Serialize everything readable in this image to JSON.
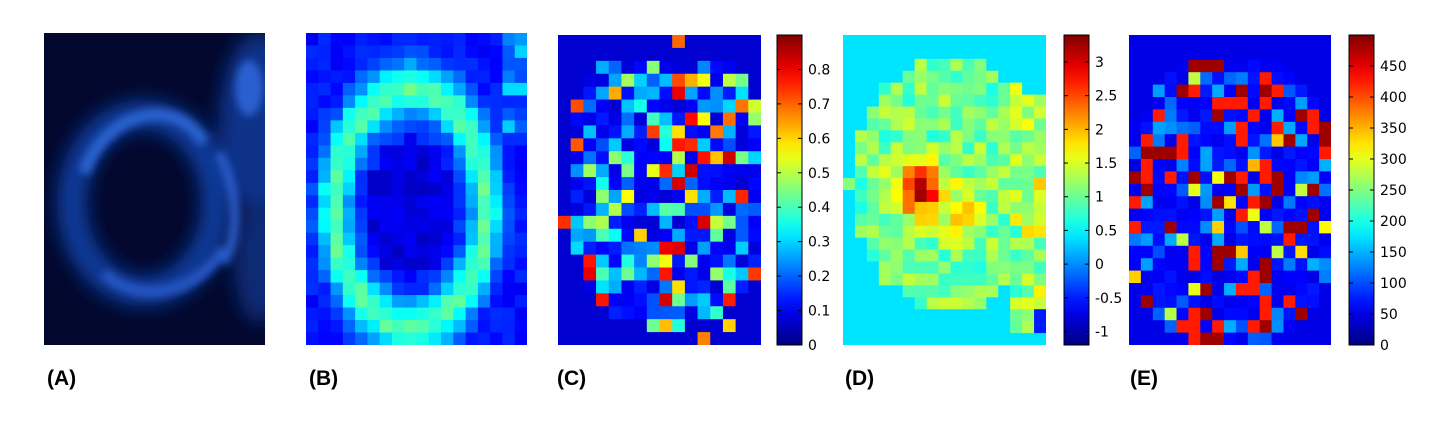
{
  "chart_data": [
    {
      "type": "heatmap",
      "panel_label": "(A)",
      "colormap": "dark-blue",
      "colorbar": null,
      "title": "",
      "xlabel": "",
      "ylabel": ""
    },
    {
      "type": "heatmap",
      "panel_label": "(B)",
      "colormap": "jet",
      "colorbar": null,
      "title": "",
      "xlabel": "",
      "ylabel": ""
    },
    {
      "type": "heatmap",
      "panel_label": "(C)",
      "colormap": "jet",
      "colorbar": {
        "range": [
          0,
          0.9
        ],
        "ticks": [
          0,
          0.1,
          0.2,
          0.3,
          0.4,
          0.5,
          0.6,
          0.7,
          0.8
        ],
        "tick_labels": [
          "0",
          "0.1",
          "0.2",
          "0.3",
          "0.4",
          "0.5",
          "0.6",
          "0.7",
          "0.8"
        ]
      },
      "title": "",
      "xlabel": "",
      "ylabel": ""
    },
    {
      "type": "heatmap",
      "panel_label": "(D)",
      "colormap": "jet",
      "colorbar": {
        "range": [
          -1.2,
          3.4
        ],
        "ticks": [
          -1,
          -0.5,
          0,
          0.5,
          1,
          1.5,
          2,
          2.5,
          3
        ],
        "tick_labels": [
          "-1",
          "-0.5",
          "0",
          "0.5",
          "1",
          "1.5",
          "2",
          "2.5",
          "3"
        ]
      },
      "title": "",
      "xlabel": "",
      "ylabel": ""
    },
    {
      "type": "heatmap",
      "panel_label": "(E)",
      "colormap": "jet",
      "colorbar": {
        "range": [
          0,
          500
        ],
        "ticks": [
          0,
          50,
          100,
          150,
          200,
          250,
          300,
          350,
          400,
          450
        ],
        "tick_labels": [
          "0",
          "50",
          "100",
          "150",
          "200",
          "250",
          "300",
          "350",
          "400",
          "450"
        ]
      },
      "title": "",
      "xlabel": "",
      "ylabel": ""
    }
  ]
}
